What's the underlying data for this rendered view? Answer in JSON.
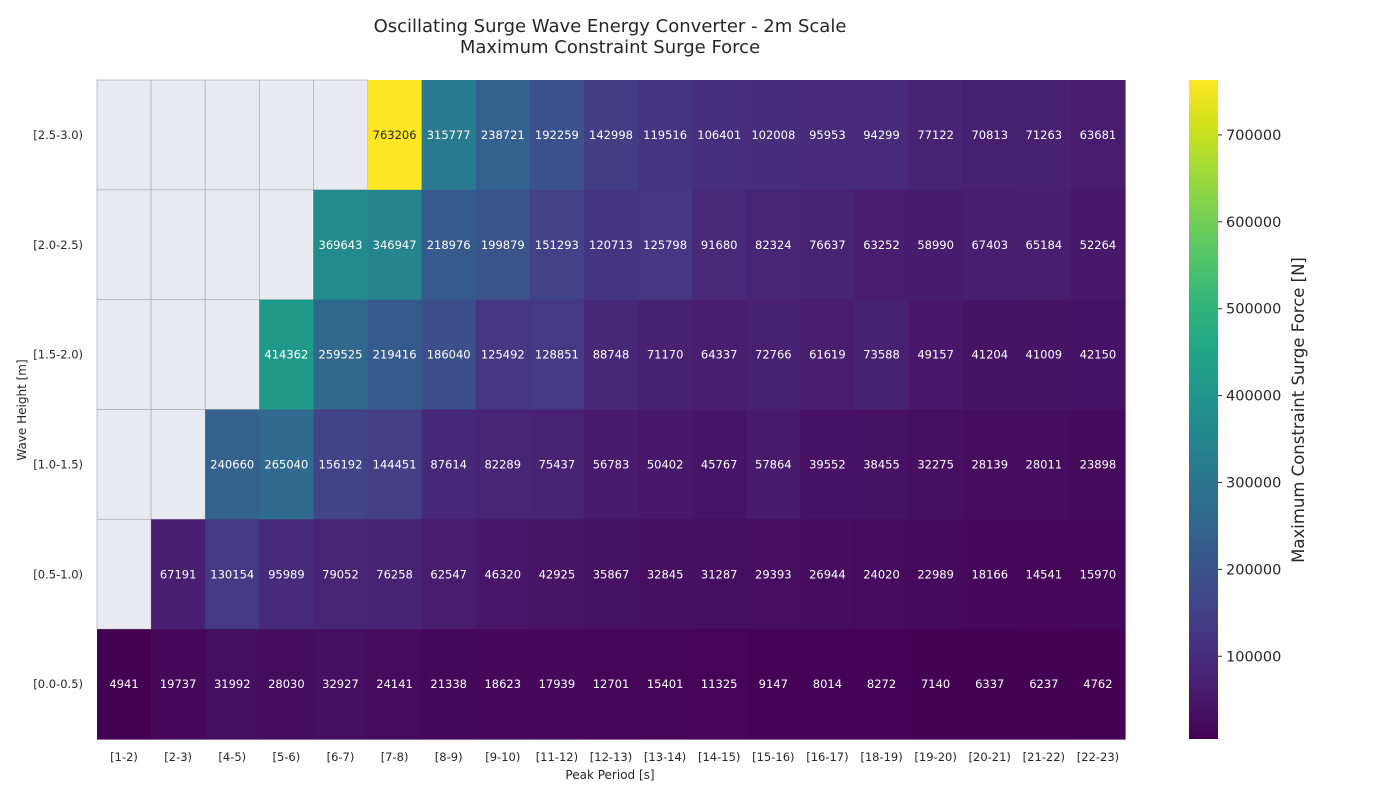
{
  "chart_data": {
    "type": "heatmap",
    "title": [
      "Oscillating Surge Wave Energy Converter - 2m Scale",
      "Maximum Constraint Surge Force"
    ],
    "xlabel": "Peak Period [s]",
    "ylabel": "Wave Height [m]",
    "colorbar_label": "Maximum Constraint Surge Force [N]",
    "colormap": "viridis",
    "color_range": [
      4762,
      763206
    ],
    "colorbar_ticks": [
      "100000",
      "200000",
      "300000",
      "400000",
      "500000",
      "600000",
      "700000"
    ],
    "x_categories": [
      "[1-2)",
      "[2-3)",
      "[4-5)",
      "[5-6)",
      "[6-7)",
      "[7-8)",
      "[8-9)",
      "[9-10)",
      "[11-12)",
      "[12-13)",
      "[13-14)",
      "[14-15)",
      "[15-16)",
      "[16-17)",
      "[18-19)",
      "[19-20)",
      "[20-21)",
      "[21-22)",
      "[22-23)"
    ],
    "y_categories": [
      "[2.5-3.0)",
      "[2.0-2.5)",
      "[1.5-2.0)",
      "[1.0-1.5)",
      "[0.5-1.0)",
      "[0.0-0.5)"
    ],
    "missing_color": "#eaeaf2",
    "values": [
      [
        null,
        null,
        null,
        null,
        null,
        763206,
        315777,
        238721,
        192259,
        142998,
        119516,
        106401,
        102008,
        95953,
        94299,
        77122,
        70813,
        71263,
        63681
      ],
      [
        null,
        null,
        null,
        null,
        369643,
        346947,
        218976,
        199879,
        151293,
        120713,
        125798,
        91680,
        82324,
        76637,
        63252,
        58990,
        67403,
        65184,
        52264
      ],
      [
        null,
        null,
        null,
        414362,
        259525,
        219416,
        186040,
        125492,
        128851,
        88748,
        71170,
        64337,
        72766,
        61619,
        73588,
        49157,
        41204,
        41009,
        42150
      ],
      [
        null,
        null,
        240660,
        265040,
        156192,
        144451,
        87614,
        82289,
        75437,
        56783,
        50402,
        45767,
        57864,
        39552,
        38455,
        32275,
        28139,
        28011,
        23898
      ],
      [
        null,
        67191,
        130154,
        95989,
        79052,
        76258,
        62547,
        46320,
        42925,
        35867,
        32845,
        31287,
        29393,
        26944,
        24020,
        22989,
        18166,
        14541,
        15970
      ],
      [
        4941,
        19737,
        31992,
        28030,
        32927,
        24141,
        21338,
        18623,
        17939,
        12701,
        15401,
        11325,
        9147,
        8014,
        8272,
        7140,
        6337,
        6237,
        4762
      ]
    ]
  }
}
